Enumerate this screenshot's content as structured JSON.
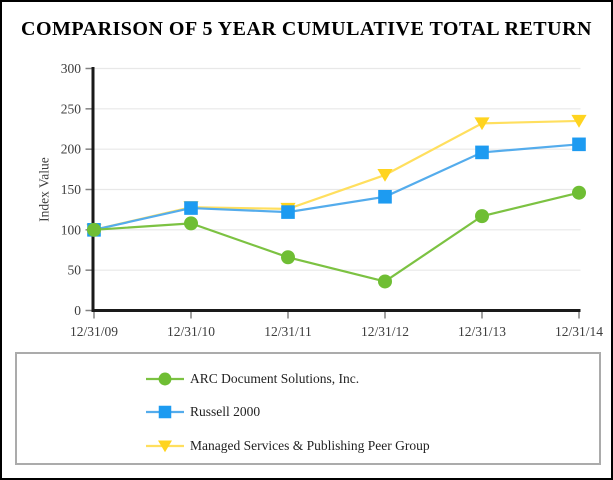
{
  "title": "COMPARISON OF 5 YEAR CUMULATIVE TOTAL RETURN",
  "chart_data": {
    "type": "line",
    "title": "COMPARISON OF 5 YEAR CUMULATIVE TOTAL RETURN",
    "xlabel": "",
    "ylabel": "Index Value",
    "x_tick_labels": [
      "12/31/09",
      "12/31/10",
      "12/31/11",
      "12/31/12",
      "12/31/13",
      "12/31/14"
    ],
    "y_ticks": [
      0,
      50,
      100,
      150,
      200,
      250,
      300
    ],
    "ylim": [
      0,
      300
    ],
    "grid": "horizontal-light-gray",
    "legend_position": "bottom-boxed",
    "series": [
      {
        "name": "ARC Document Solutions, Inc.",
        "marker": "circle",
        "line_color": "#7cc242",
        "marker_color": "#6fbe34",
        "values": [
          100,
          108,
          66,
          36,
          117,
          146
        ]
      },
      {
        "name": "Russell 2000",
        "marker": "square",
        "line_color": "#54acec",
        "marker_color": "#1d9bf1",
        "values": [
          100,
          127,
          122,
          141,
          196,
          206
        ]
      },
      {
        "name": "Managed Services & Publishing Peer Group",
        "marker": "triangle-down",
        "line_color": "#ffdf5e",
        "marker_color": "#ffd41f",
        "values": [
          100,
          128,
          126,
          168,
          232,
          235
        ]
      }
    ],
    "colors": {
      "grid": "#e8e8e8",
      "axis": "#1a1a1a",
      "tick": "#828282",
      "tick_text": "#3d3d3d",
      "legend_border": "#ababab",
      "frame": "#000000"
    }
  }
}
